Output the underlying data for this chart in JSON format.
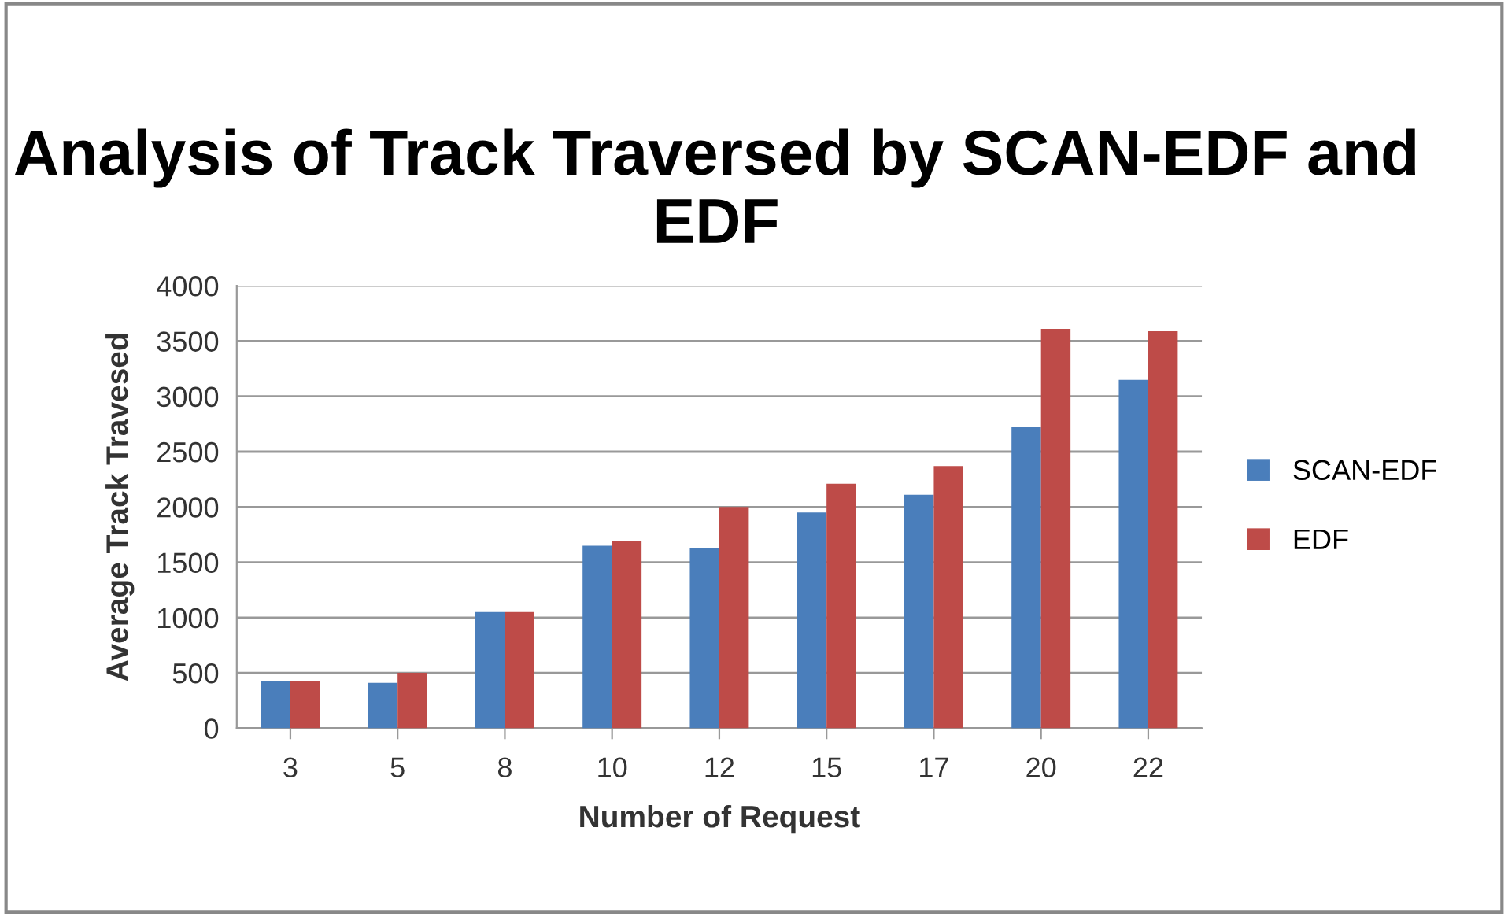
{
  "chart_data": {
    "type": "bar",
    "title": "Analysis of Track Traversed by SCAN-EDF and EDF",
    "xlabel": "Number of Request",
    "ylabel": "Average Track Travesed",
    "categories": [
      "3",
      "5",
      "8",
      "10",
      "12",
      "15",
      "17",
      "20",
      "22"
    ],
    "series": [
      {
        "name": "SCAN-EDF",
        "color": "#4a7ebb",
        "values": [
          430,
          410,
          1050,
          1650,
          1630,
          1950,
          2110,
          2720,
          3150
        ]
      },
      {
        "name": "EDF",
        "color": "#be4b48",
        "values": [
          430,
          500,
          1050,
          1690,
          2000,
          2210,
          2370,
          3610,
          3590
        ]
      }
    ],
    "ylim": [
      0,
      4000
    ],
    "yticks": [
      0,
      500,
      1000,
      1500,
      2000,
      2500,
      3000,
      3500,
      4000
    ],
    "grid": "y",
    "legend": "right"
  }
}
